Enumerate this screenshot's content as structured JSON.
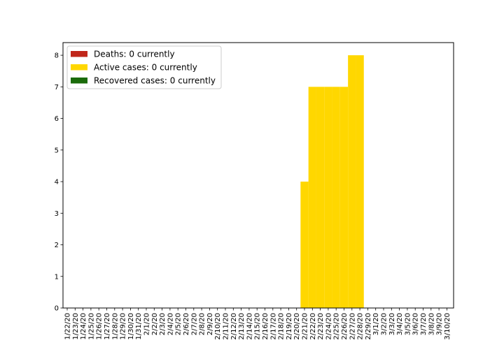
{
  "chart_data": {
    "type": "bar",
    "stacked": true,
    "categories": [
      "1/22/20",
      "1/23/20",
      "1/24/20",
      "1/25/20",
      "1/26/20",
      "1/27/20",
      "1/28/20",
      "1/29/20",
      "1/30/20",
      "1/31/20",
      "2/1/20",
      "2/2/20",
      "2/3/20",
      "2/4/20",
      "2/5/20",
      "2/6/20",
      "2/7/20",
      "2/8/20",
      "2/9/20",
      "2/10/20",
      "2/11/20",
      "2/12/20",
      "2/13/20",
      "2/14/20",
      "2/15/20",
      "2/16/20",
      "2/17/20",
      "2/18/20",
      "2/19/20",
      "2/20/20",
      "2/21/20",
      "2/22/20",
      "2/23/20",
      "2/24/20",
      "2/25/20",
      "2/26/20",
      "2/27/20",
      "2/28/20",
      "2/29/20",
      "3/1/20",
      "3/2/20",
      "3/3/20",
      "3/4/20",
      "3/5/20",
      "3/6/20",
      "3/7/20",
      "3/8/20",
      "3/9/20",
      "3/10/20"
    ],
    "series": [
      {
        "name": "Deaths: 0 currently",
        "color": "#c0261a",
        "values": [
          0,
          0,
          0,
          0,
          0,
          0,
          0,
          0,
          0,
          0,
          0,
          0,
          0,
          0,
          0,
          0,
          0,
          0,
          0,
          0,
          0,
          0,
          0,
          0,
          0,
          0,
          0,
          0,
          0,
          0,
          0,
          0,
          0,
          0,
          0,
          0,
          0,
          0,
          0,
          0,
          0,
          0,
          0,
          0,
          0,
          0,
          0,
          0,
          0
        ]
      },
      {
        "name": "Active cases: 0 currently",
        "color": "#ffd700",
        "values": [
          0,
          0,
          0,
          0,
          0,
          0,
          0,
          0,
          0,
          0,
          0,
          0,
          0,
          0,
          0,
          0,
          0,
          0,
          0,
          0,
          0,
          0,
          0,
          0,
          0,
          0,
          0,
          0,
          0,
          0,
          4,
          7,
          7,
          7,
          7,
          7,
          8,
          8,
          0,
          0,
          0,
          0,
          0,
          0,
          0,
          0,
          0,
          0,
          0
        ]
      },
      {
        "name": "Recovered cases: 0 currently",
        "color": "#1a6b0a",
        "values": [
          0,
          0,
          0,
          0,
          0,
          0,
          0,
          0,
          0,
          0,
          0,
          0,
          0,
          0,
          0,
          0,
          0,
          0,
          0,
          0,
          0,
          0,
          0,
          0,
          0,
          0,
          0,
          0,
          0,
          0,
          0,
          0,
          0,
          0,
          0,
          0,
          0,
          0,
          0,
          0,
          0,
          0,
          0,
          0,
          0,
          0,
          0,
          0,
          0
        ]
      }
    ],
    "yticks": [
      0,
      1,
      2,
      3,
      4,
      5,
      6,
      7,
      8
    ],
    "ylim": [
      0,
      8.4
    ],
    "grid": false,
    "legend_position": "top-left"
  }
}
